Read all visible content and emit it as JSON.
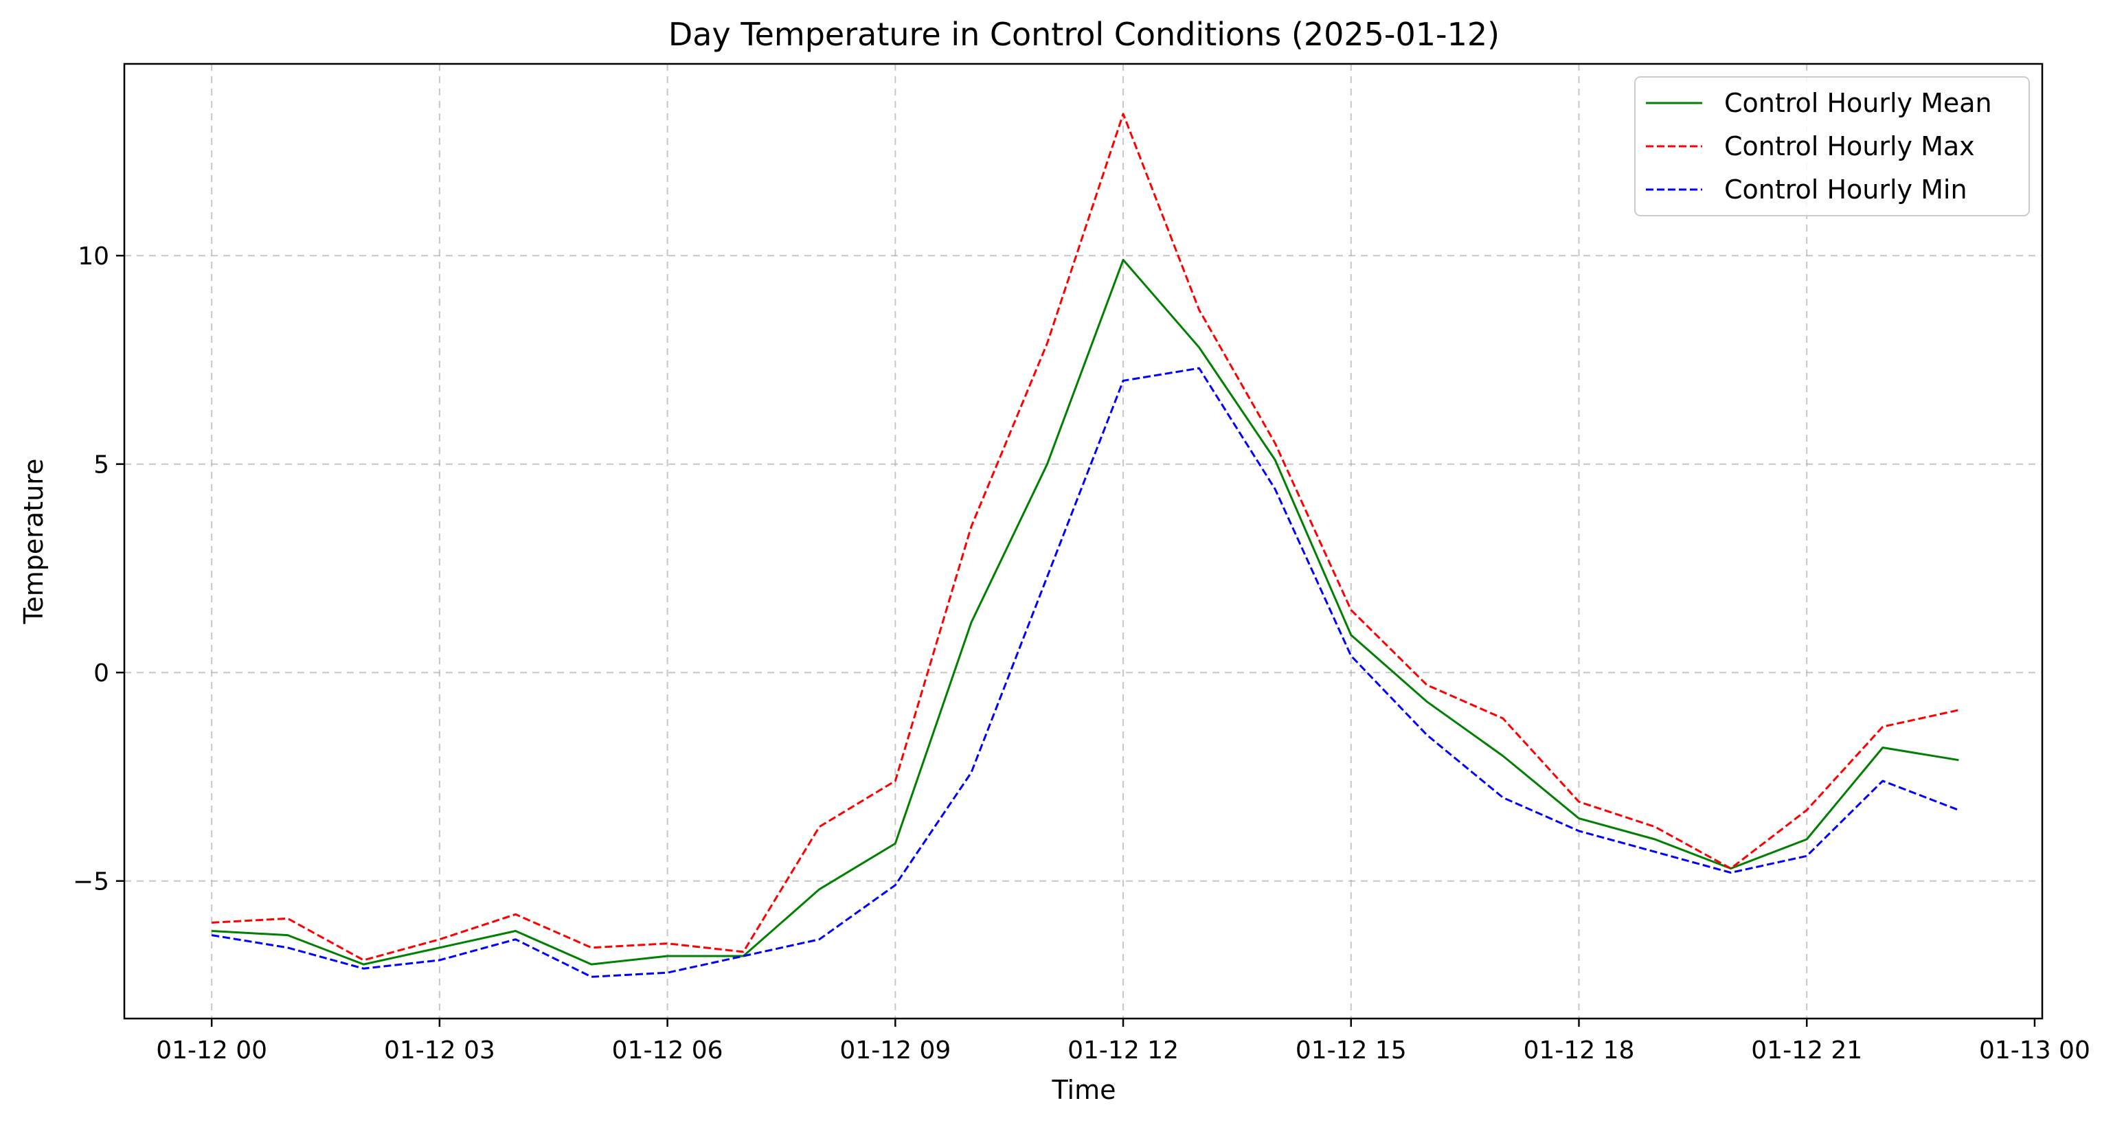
{
  "chart_data": {
    "type": "line",
    "title": "Day Temperature in Control Conditions (2025-01-12)",
    "xlabel": "Time",
    "ylabel": "Temperature",
    "x_tick_labels": [
      "01-12 00",
      "01-12 03",
      "01-12 06",
      "01-12 09",
      "01-12 12",
      "01-12 15",
      "01-12 18",
      "01-12 21",
      "01-13 00"
    ],
    "x_tick_hours": [
      0,
      3,
      6,
      9,
      12,
      15,
      18,
      21,
      24
    ],
    "y_ticks": [
      -5,
      0,
      5,
      10
    ],
    "y_tick_labels": [
      "−5",
      "0",
      "5",
      "10"
    ],
    "xlim": [
      -1.15,
      24.1
    ],
    "ylim": [
      -8.3,
      14.6
    ],
    "x_hours": [
      0,
      1,
      2,
      3,
      4,
      5,
      6,
      7,
      8,
      9,
      10,
      11,
      12,
      13,
      14,
      15,
      16,
      17,
      18,
      19,
      20,
      21,
      22,
      23
    ],
    "grid": true,
    "legend_position": "top-right",
    "series": [
      {
        "name": "Control Hourly Mean",
        "color": "#008000",
        "dash": "solid",
        "values": [
          -6.2,
          -6.3,
          -7.0,
          -6.6,
          -6.2,
          -7.0,
          -6.8,
          -6.8,
          -5.2,
          -4.1,
          1.2,
          5.0,
          9.9,
          7.8,
          5.1,
          0.9,
          -0.7,
          -2.0,
          -3.5,
          -4.0,
          -4.7,
          -4.0,
          -1.8,
          -2.1
        ]
      },
      {
        "name": "Control Hourly Max",
        "color": "#ff0000",
        "dash": "dashed",
        "values": [
          -6.0,
          -5.9,
          -6.9,
          -6.4,
          -5.8,
          -6.6,
          -6.5,
          -6.7,
          -3.7,
          -2.6,
          3.5,
          7.9,
          13.4,
          8.7,
          5.5,
          1.5,
          -0.3,
          -1.1,
          -3.1,
          -3.7,
          -4.7,
          -3.3,
          -1.3,
          -0.9
        ]
      },
      {
        "name": "Control Hourly Min",
        "color": "#0000ff",
        "dash": "dashed",
        "values": [
          -6.3,
          -6.6,
          -7.1,
          -6.9,
          -6.4,
          -7.3,
          -7.2,
          -6.8,
          -6.4,
          -5.1,
          -2.4,
          2.3,
          7.0,
          7.3,
          4.4,
          0.4,
          -1.5,
          -3.0,
          -3.8,
          -4.3,
          -4.8,
          -4.4,
          -2.6,
          -3.3
        ]
      }
    ]
  }
}
